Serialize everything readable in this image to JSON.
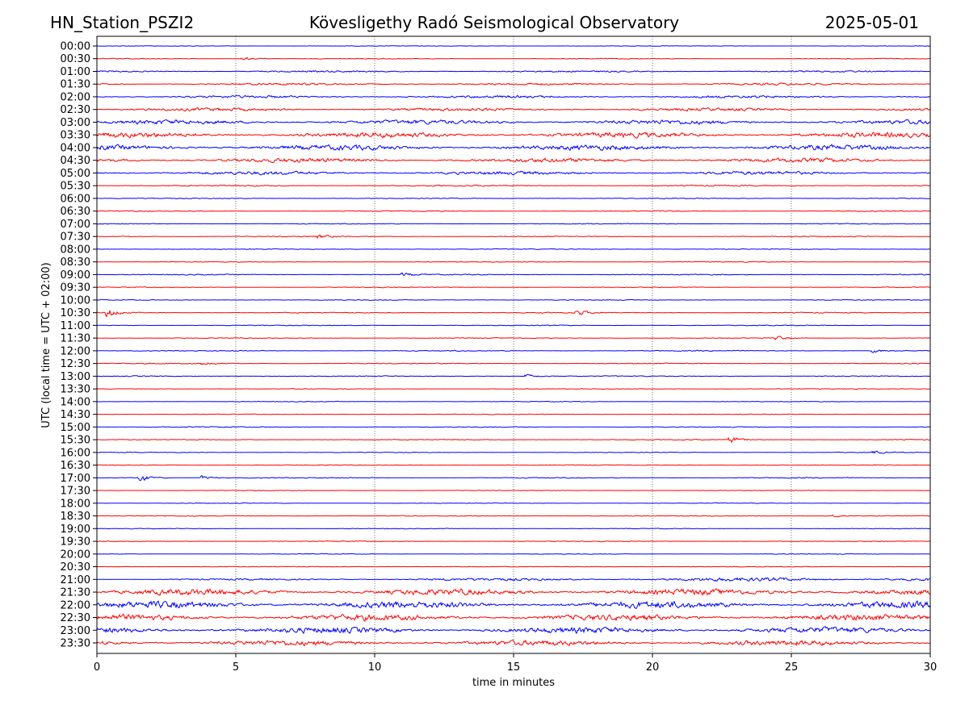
{
  "chart_data": {
    "type": "line",
    "title_left": "HN_Station_PSZI2",
    "title": "Kövesligethy Radó Seismological Observatory",
    "title_right": "2025-05-01",
    "xlabel": "time in minutes",
    "ylabel": "UTC (local time = UTC + 02:00)",
    "xlim": [
      0,
      30
    ],
    "xticks": [
      0,
      5,
      10,
      15,
      20,
      25,
      30
    ],
    "grid": "vertical dotted",
    "colors": [
      "#0000ff",
      "#ff0000"
    ],
    "rows": [
      "00:00",
      "00:30",
      "01:00",
      "01:30",
      "02:00",
      "02:30",
      "03:00",
      "03:30",
      "04:00",
      "04:30",
      "05:00",
      "05:30",
      "06:00",
      "06:30",
      "07:00",
      "07:30",
      "08:00",
      "08:30",
      "09:00",
      "09:30",
      "10:00",
      "10:30",
      "11:00",
      "11:30",
      "12:00",
      "12:30",
      "13:00",
      "13:30",
      "14:00",
      "14:30",
      "15:00",
      "15:30",
      "16:00",
      "16:30",
      "17:00",
      "17:30",
      "18:00",
      "18:30",
      "19:00",
      "19:30",
      "20:00",
      "20:30",
      "21:00",
      "21:30",
      "22:00",
      "22:30",
      "23:00",
      "23:30"
    ],
    "noise_level": [
      0.3,
      0.5,
      1,
      1.2,
      1.5,
      1.8,
      2.5,
      3,
      3,
      2.5,
      2,
      0.8,
      0.5,
      0.6,
      0.5,
      0.6,
      0.5,
      0.5,
      0.6,
      0.5,
      0.5,
      0.6,
      0.5,
      0.5,
      0.6,
      0.6,
      0.5,
      0.4,
      0.4,
      0.4,
      0.5,
      0.5,
      0.4,
      0.4,
      0.6,
      0.4,
      0.4,
      0.5,
      0.4,
      0.5,
      0.4,
      0.4,
      1.5,
      3.5,
      4,
      3.5,
      3.5,
      3
    ],
    "events": [
      {
        "row": "00:30",
        "minute": 5.3,
        "amplitude": 2
      },
      {
        "row": "07:30",
        "minute": 8,
        "amplitude": 2
      },
      {
        "row": "09:00",
        "minute": 11,
        "amplitude": 2
      },
      {
        "row": "10:30",
        "minute": 0.4,
        "amplitude": 5
      },
      {
        "row": "10:30",
        "minute": 17.3,
        "amplitude": 3
      },
      {
        "row": "11:30",
        "minute": 24.5,
        "amplitude": 2
      },
      {
        "row": "12:00",
        "minute": 28,
        "amplitude": 2
      },
      {
        "row": "12:30",
        "minute": 3.8,
        "amplitude": 2.5
      },
      {
        "row": "13:00",
        "minute": 15.5,
        "amplitude": 2
      },
      {
        "row": "15:30",
        "minute": 22.8,
        "amplitude": 4
      },
      {
        "row": "16:00",
        "minute": 28,
        "amplitude": 1.5
      },
      {
        "row": "17:00",
        "minute": 1.5,
        "amplitude": 5
      },
      {
        "row": "17:00",
        "minute": 3.8,
        "amplitude": 2.5
      },
      {
        "row": "18:30",
        "minute": 26.5,
        "amplitude": 1.5
      }
    ]
  }
}
